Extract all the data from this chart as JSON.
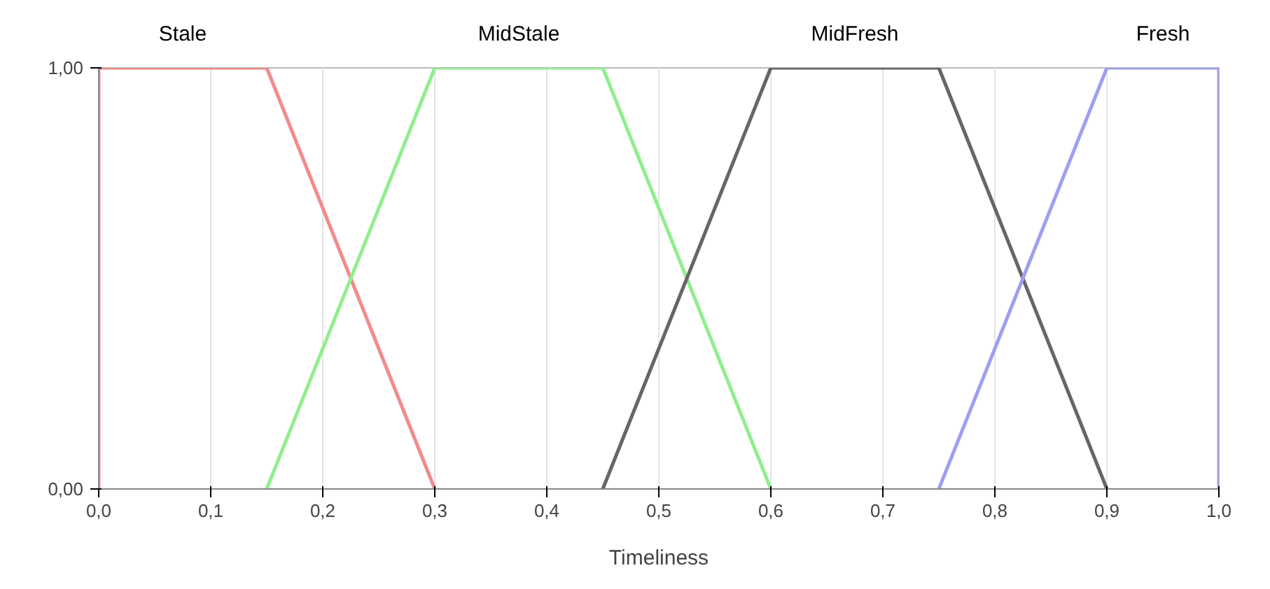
{
  "chart_data": {
    "type": "line",
    "xlabel": "Timeliness",
    "xlim": [
      0,
      1.0
    ],
    "ylim": [
      0,
      1.0
    ],
    "xticks": [
      {
        "value": 0,
        "label": "0,0"
      },
      {
        "value": 0.1,
        "label": "0,1"
      },
      {
        "value": 0.2,
        "label": "0,2"
      },
      {
        "value": 0.3,
        "label": "0,3"
      },
      {
        "value": 0.4,
        "label": "0,4"
      },
      {
        "value": 0.5,
        "label": "0,5"
      },
      {
        "value": 0.6,
        "label": "0,6"
      },
      {
        "value": 0.7,
        "label": "0,7"
      },
      {
        "value": 0.8,
        "label": "0,8"
      },
      {
        "value": 0.9,
        "label": "0,9"
      },
      {
        "value": 1.0,
        "label": "1,0"
      }
    ],
    "yticks": [
      {
        "value": 0,
        "label": "0,00"
      },
      {
        "value": 1.0,
        "label": "1,00"
      }
    ],
    "grid": "x",
    "line_style": "solid",
    "marker": "none",
    "series": [
      {
        "name": "Stale",
        "color": "#f08c8c",
        "x": [
          0,
          0,
          0.15,
          0.3
        ],
        "values": [
          0,
          1,
          1,
          0
        ]
      },
      {
        "name": "MidStale",
        "color": "#90ee90",
        "x": [
          0.15,
          0.3,
          0.45,
          0.6
        ],
        "values": [
          0,
          1,
          1,
          0
        ]
      },
      {
        "name": "MidFresh",
        "color": "#666666",
        "x": [
          0.45,
          0.6,
          0.75,
          0.9
        ],
        "values": [
          0,
          1,
          1,
          0
        ]
      },
      {
        "name": "Fresh",
        "color": "#9f9ff0",
        "x": [
          0.75,
          0.9,
          1.0,
          1.0
        ],
        "values": [
          0,
          1,
          1,
          0
        ]
      }
    ]
  }
}
